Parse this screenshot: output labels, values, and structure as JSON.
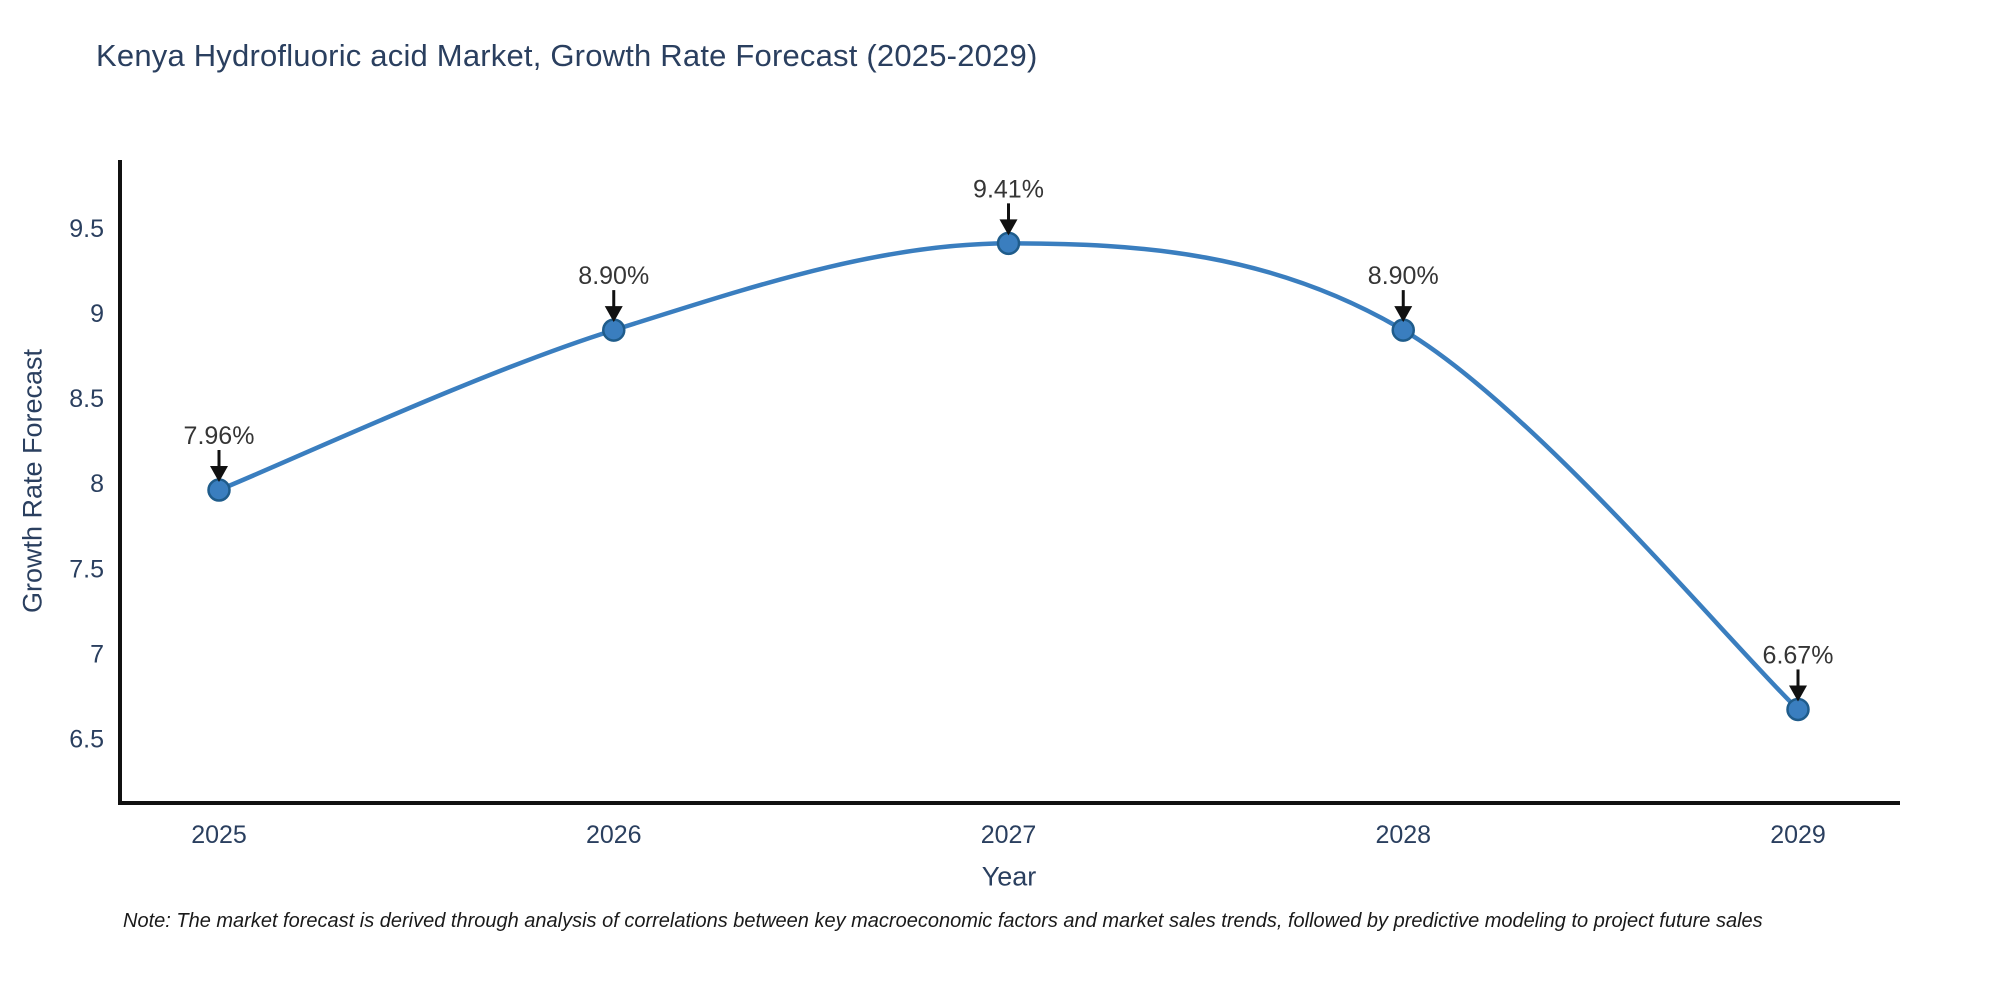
{
  "title": "Kenya Hydrofluoric acid Market, Growth Rate Forecast (2025-2029)",
  "note": "Note: The market forecast is derived through analysis of correlations between key macroeconomic factors and market sales trends, followed by predictive modeling to project future sales",
  "chart_data": {
    "type": "line",
    "title": "Kenya Hydrofluoric acid Market, Growth Rate Forecast (2025-2029)",
    "xlabel": "Year",
    "ylabel": "Growth Rate Forecast",
    "categories": [
      "2025",
      "2026",
      "2027",
      "2028",
      "2029"
    ],
    "x": [
      2025,
      2026,
      2027,
      2028,
      2029
    ],
    "values": [
      7.96,
      8.9,
      9.41,
      8.9,
      6.67
    ],
    "point_labels": [
      "7.96%",
      "8.90%",
      "9.41%",
      "8.90%",
      "6.67%"
    ],
    "line_shape": "spline",
    "markers": true,
    "grid": false,
    "legend": "none",
    "ylim": [
      6.12,
      9.9
    ],
    "yticks": [
      6.5,
      7,
      7.5,
      8,
      8.5,
      9,
      9.5
    ],
    "ytick_labels": [
      "6.5",
      "7",
      "7.5",
      "8",
      "8.5",
      "9",
      "9.5"
    ],
    "colors": {
      "line": "#3a7ebf",
      "marker_fill": "#3a7ebf",
      "marker_edge": "#1f5c8b",
      "axis": "#111111",
      "tick_text": "#2a3f5f",
      "annotation_text": "#353535",
      "arrow": "#111111",
      "background": "#ffffff"
    }
  }
}
